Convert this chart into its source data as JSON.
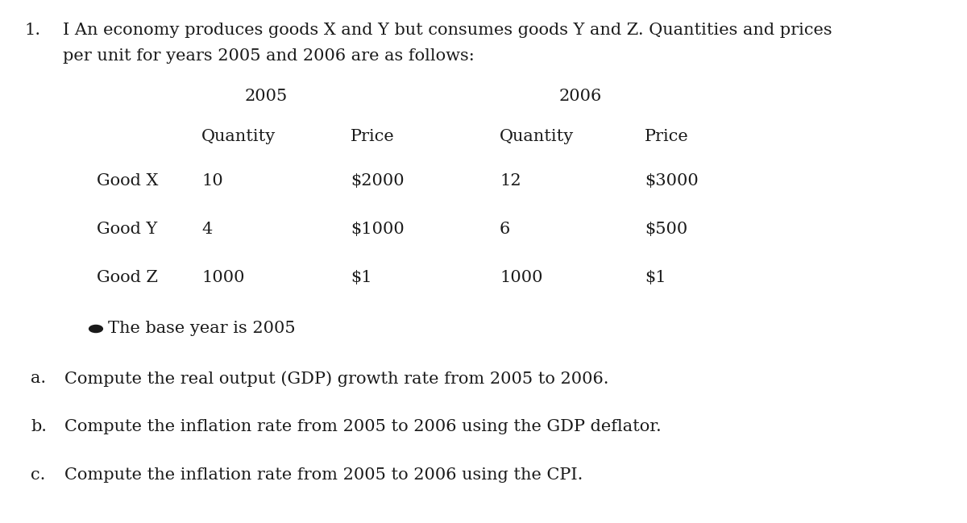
{
  "bg_color": "#ffffff",
  "text_color": "#1a1a1a",
  "font_family": "DejaVu Serif",
  "question_number": "1.",
  "question_line1": "I An economy produces goods X and Y but consumes goods Y and Z. Quantities and prices",
  "question_line2": "per unit for years 2005 and 2006 are as follows:",
  "year_2005": "2005",
  "year_2006": "2006",
  "col_headers": [
    "Quantity",
    "Price",
    "Quantity",
    "Price"
  ],
  "goods": [
    "Good X",
    "Good Y",
    "Good Z"
  ],
  "data_2005_qty": [
    "10",
    "4",
    "1000"
  ],
  "data_2005_price": [
    "$2000",
    "$1000",
    "$1"
  ],
  "data_2006_qty": [
    "12",
    "6",
    "1000"
  ],
  "data_2006_price": [
    "$3000",
    "$500",
    "$1"
  ],
  "bullet_text": "The base year is 2005",
  "part_a": "Compute the real output (GDP) growth rate from 2005 to 2006.",
  "part_b": "Compute the inflation rate from 2005 to 2006 using the GDP deflator.",
  "part_c": "Compute the inflation rate from 2005 to 2006 using the CPI.",
  "font_size": 15.0,
  "fig_width": 12.0,
  "fig_height": 6.49,
  "dpi": 100
}
